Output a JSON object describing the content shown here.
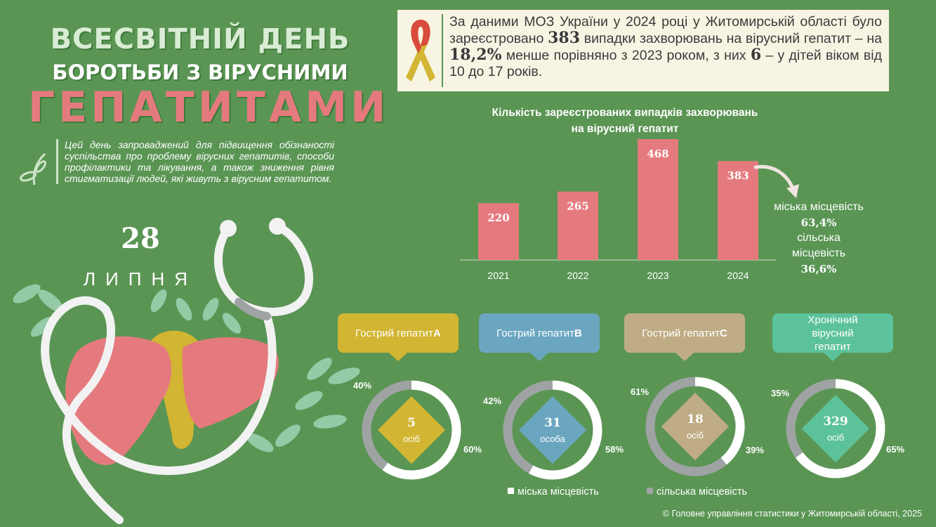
{
  "title": {
    "line1": "ВСЕСВІТНІЙ ДЕНЬ",
    "line2": "БОРОТЬБИ З ВІРУСНИМИ",
    "line3": "ГЕПАТИТАМИ"
  },
  "intro": "Цей день запроваджений для підвищення обізнаності суспільства про проблему вірусних гепатитів, способи профілактики та лікування, а також зниження рівня стигматизації людей, які живуть з вірусним гепатитом.",
  "date": {
    "day": "28",
    "month": "ЛИПНЯ"
  },
  "info": {
    "part1": "За даними МОЗ України у 2024 році у Житомирській області було зареєстровано ",
    "cases": "383",
    "part2": " випадки захворювань на вірусний гепатит – на ",
    "decrease": "18,2%",
    "part3": " менше порівняно з 2023 роком, з них ",
    "children": "6",
    "part4": " – у дітей віком від 10 до 17 років."
  },
  "breakdown": {
    "urban_label": "міська місцевість",
    "urban_value": "63,4%",
    "rural_label": "сільська місцевість",
    "rural_value": "36,6%"
  },
  "legend": {
    "urban": "міська місцевість",
    "rural": "сільська місцевість"
  },
  "source": "© Головне управління статистики у Житомирській області, 2025",
  "colors": {
    "background": "#5a9554",
    "bar": "#e57a7e",
    "urban": "#ffffff",
    "rural": "#9fa3a4",
    "hep_a": "#d2b532",
    "hep_b": "#6ba6c0",
    "hep_c": "#bfac84",
    "chronic": "#5cc29b"
  },
  "chart_data": [
    {
      "type": "bar",
      "title": "Кількість зареєстрованих випадків захворювань на вірусний гепатит",
      "categories": [
        "2021",
        "2022",
        "2023",
        "2024"
      ],
      "values": [
        220,
        265,
        468,
        383
      ],
      "ylim": [
        0,
        500
      ],
      "grid": false,
      "legend": "none"
    },
    {
      "type": "pie",
      "donut": true,
      "title_parts": [
        "Гострий гепатит ",
        "A"
      ],
      "center_value": "5",
      "center_unit": "осіб",
      "categories": [
        "міська місцевість",
        "сільська місцевість"
      ],
      "values": [
        60,
        40
      ],
      "value_labels": [
        "60%",
        "40%"
      ]
    },
    {
      "type": "pie",
      "donut": true,
      "title_parts": [
        "Гострий гепатит ",
        "B"
      ],
      "center_value": "31",
      "center_unit": "особа",
      "categories": [
        "міська місцевість",
        "сільська місцевість"
      ],
      "values": [
        58,
        42
      ],
      "value_labels": [
        "58%",
        "42%"
      ]
    },
    {
      "type": "pie",
      "donut": true,
      "title_parts": [
        "Гострий гепатит ",
        "C"
      ],
      "center_value": "18",
      "center_unit": "осіб",
      "categories": [
        "міська місцевість",
        "сільська місцевість"
      ],
      "values": [
        39,
        61
      ],
      "value_labels": [
        "39%",
        "61%"
      ]
    },
    {
      "type": "pie",
      "donut": true,
      "title_parts": [
        "Хронічний вірусний гепатит",
        ""
      ],
      "center_value": "329",
      "center_unit": "осіб",
      "categories": [
        "міська місцевість",
        "сільська місцевість"
      ],
      "values": [
        65,
        35
      ],
      "value_labels": [
        "65%",
        "35%"
      ]
    }
  ]
}
